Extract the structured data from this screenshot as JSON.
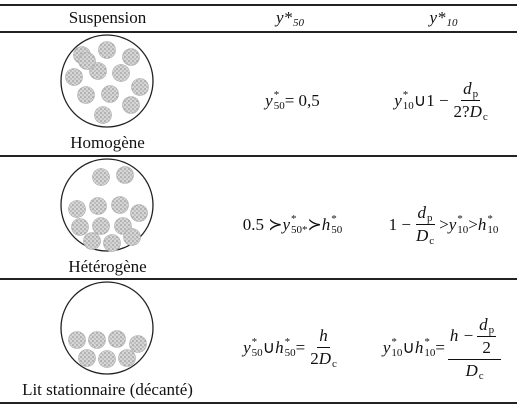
{
  "table": {
    "header": {
      "suspension": "Suspension",
      "y50": [
        {
          "t": "y*",
          "sub": "50"
        }
      ],
      "y10": [
        {
          "t": "y*",
          "sub": "10"
        }
      ]
    },
    "rows": [
      {
        "label": "Homogène",
        "y50": [
          {
            "t": "y",
            "sup": "*",
            "sub": "50"
          },
          {
            "t": " = 0,5"
          }
        ],
        "y10": [
          {
            "t": "y",
            "sup": "*",
            "sub": "10"
          },
          {
            "t": " ∪1 − "
          },
          {
            "frac": {
              "num": [
                {
                  "t": "d",
                  "sub": "p"
                }
              ],
              "den": [
                {
                  "t": "2?"
                },
                {
                  "t": "D",
                  "sub": "c"
                }
              ]
            }
          }
        ]
      },
      {
        "label": "Hétérogène",
        "y50": [
          {
            "t": "0.5 ≻ "
          },
          {
            "t": "y",
            "sup": "*",
            "sub": "50*"
          },
          {
            "t": " ≻ "
          },
          {
            "t": "h",
            "sup": "*",
            "sub": "50"
          }
        ],
        "y10": [
          {
            "t": "1 − "
          },
          {
            "frac": {
              "num": [
                {
                  "t": "d",
                  "sub": "p"
                }
              ],
              "den": [
                {
                  "t": "D",
                  "sub": "c"
                }
              ]
            }
          },
          {
            "t": " > "
          },
          {
            "t": "y",
            "sup": "*",
            "sub": "10"
          },
          {
            "t": " > "
          },
          {
            "t": "h",
            "sup": "*",
            "sub": "10"
          }
        ]
      },
      {
        "label": "Lit stationnaire (décanté)",
        "y50": [
          {
            "t": "y",
            "sup": "*",
            "sub": "50"
          },
          {
            "t": " ∪ "
          },
          {
            "t": "h",
            "sup": "*",
            "sub": "50"
          },
          {
            "t": " = "
          },
          {
            "frac": {
              "num": [
                {
                  "t": "h"
                }
              ],
              "den": [
                {
                  "t": "2"
                },
                {
                  "t": "D",
                  "sub": "c"
                }
              ]
            }
          }
        ],
        "y10": [
          {
            "t": "y",
            "sup": "*",
            "sub": "10"
          },
          {
            "t": " ∪ "
          },
          {
            "t": "h",
            "sup": "*",
            "sub": "10"
          },
          {
            "t": " = "
          },
          {
            "frac": {
              "num": [
                {
                  "t": "h − "
                },
                {
                  "frac": {
                    "num": [
                      {
                        "t": "d",
                        "sub": "p"
                      }
                    ],
                    "den": [
                      {
                        "t": "2"
                      }
                    ]
                  }
                }
              ],
              "den": [
                {
                  "t": "D",
                  "sub": "c"
                }
              ]
            }
          }
        ]
      }
    ]
  }
}
